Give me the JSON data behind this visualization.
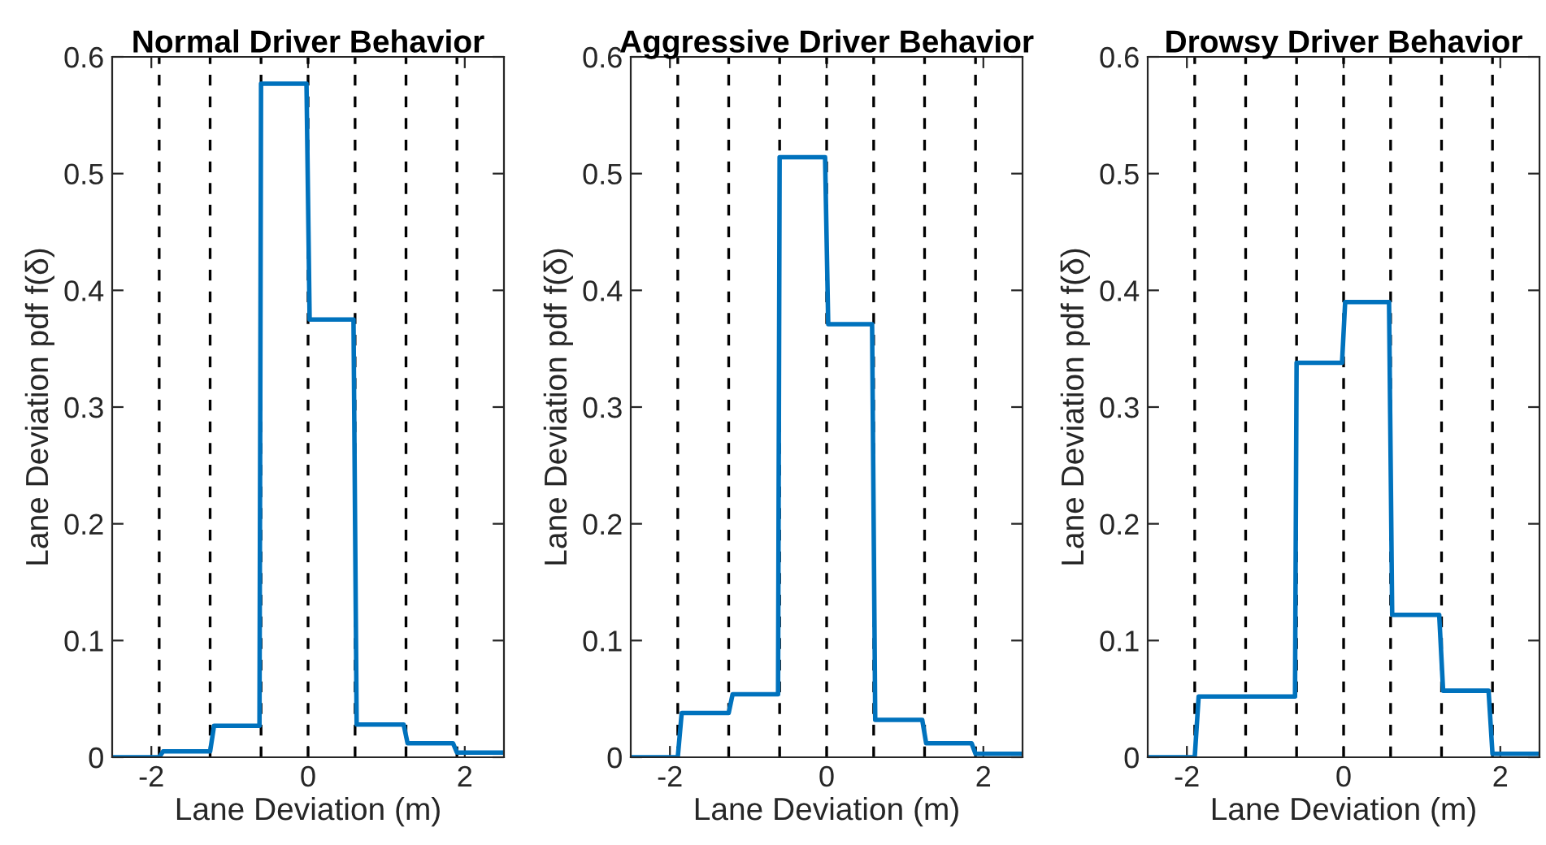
{
  "chart_data": [
    {
      "type": "line",
      "title": "Normal Driver Behavior",
      "xlabel": "Lane Deviation (m)",
      "ylabel": "Lane Deviation pdf f(δ)",
      "xlim": [
        -2.5,
        2.5
      ],
      "xticks": [
        -2,
        0,
        2
      ],
      "ylim": [
        0,
        0.6
      ],
      "yticks": [
        0,
        0.1,
        0.2,
        0.3,
        0.4,
        0.5,
        0.6
      ],
      "grid": false,
      "legend": false,
      "line_style": "solid",
      "marker": "none",
      "series": [
        {
          "color": "#0072bd",
          "x": [
            -2.5,
            -1.9,
            -1.85,
            -1.25,
            -1.2,
            -0.62,
            -0.6,
            -0.02,
            0.02,
            0.58,
            0.62,
            1.22,
            1.27,
            1.85,
            1.9,
            2.5
          ],
          "values": [
            0,
            0,
            0.005,
            0.005,
            0.027,
            0.027,
            0.577,
            0.577,
            0.375,
            0.375,
            0.028,
            0.028,
            0.012,
            0.012,
            0.004,
            0.004
          ]
        }
      ],
      "ref_lines": [
        {
          "axis": "x",
          "value": -1.9,
          "color": "#000000",
          "line_style": "dashed"
        },
        {
          "axis": "x",
          "value": -1.25,
          "color": "#000000",
          "line_style": "dashed"
        },
        {
          "axis": "x",
          "value": -0.6,
          "color": "#000000",
          "line_style": "dashed"
        },
        {
          "axis": "x",
          "value": 0,
          "color": "#000000",
          "line_style": "dashed"
        },
        {
          "axis": "x",
          "value": 0.6,
          "color": "#000000",
          "line_style": "dashed"
        },
        {
          "axis": "x",
          "value": 1.25,
          "color": "#000000",
          "line_style": "dashed"
        },
        {
          "axis": "x",
          "value": 1.9,
          "color": "#000000",
          "line_style": "dashed"
        }
      ]
    },
    {
      "type": "line",
      "title": "Aggressive Driver Behavior",
      "xlabel": "Lane Deviation (m)",
      "ylabel": "Lane Deviation pdf f(δ)",
      "xlim": [
        -2.5,
        2.5
      ],
      "xticks": [
        -2,
        0,
        2
      ],
      "ylim": [
        0,
        0.6
      ],
      "yticks": [
        0,
        0.1,
        0.2,
        0.3,
        0.4,
        0.5,
        0.6
      ],
      "grid": false,
      "legend": false,
      "line_style": "solid",
      "marker": "none",
      "series": [
        {
          "color": "#0072bd",
          "x": [
            -2.5,
            -1.9,
            -1.85,
            -1.25,
            -1.2,
            -0.62,
            -0.6,
            -0.02,
            0.02,
            0.58,
            0.62,
            1.22,
            1.27,
            1.85,
            1.9,
            2.5
          ],
          "values": [
            0,
            0,
            0.038,
            0.038,
            0.054,
            0.054,
            0.514,
            0.514,
            0.371,
            0.371,
            0.032,
            0.032,
            0.012,
            0.012,
            0.003,
            0.003
          ]
        }
      ],
      "ref_lines": [
        {
          "axis": "x",
          "value": -1.9,
          "color": "#000000",
          "line_style": "dashed"
        },
        {
          "axis": "x",
          "value": -1.25,
          "color": "#000000",
          "line_style": "dashed"
        },
        {
          "axis": "x",
          "value": -0.6,
          "color": "#000000",
          "line_style": "dashed"
        },
        {
          "axis": "x",
          "value": 0,
          "color": "#000000",
          "line_style": "dashed"
        },
        {
          "axis": "x",
          "value": 0.6,
          "color": "#000000",
          "line_style": "dashed"
        },
        {
          "axis": "x",
          "value": 1.25,
          "color": "#000000",
          "line_style": "dashed"
        },
        {
          "axis": "x",
          "value": 1.9,
          "color": "#000000",
          "line_style": "dashed"
        }
      ]
    },
    {
      "type": "line",
      "title": "Drowsy Driver Behavior",
      "xlabel": "Lane Deviation (m)",
      "ylabel": "Lane Deviation pdf f(δ)",
      "xlim": [
        -2.5,
        2.5
      ],
      "xticks": [
        -2,
        0,
        2
      ],
      "ylim": [
        0,
        0.6
      ],
      "yticks": [
        0,
        0.1,
        0.2,
        0.3,
        0.4,
        0.5,
        0.6
      ],
      "grid": false,
      "legend": false,
      "line_style": "solid",
      "marker": "none",
      "series": [
        {
          "color": "#0072bd",
          "x": [
            -2.5,
            -1.9,
            -1.85,
            -0.62,
            -0.6,
            -0.02,
            0.02,
            0.58,
            0.62,
            1.22,
            1.27,
            1.85,
            1.9,
            2.5
          ],
          "values": [
            0,
            0,
            0.052,
            0.052,
            0.338,
            0.338,
            0.39,
            0.39,
            0.122,
            0.122,
            0.057,
            0.057,
            0.003,
            0.003
          ]
        }
      ],
      "ref_lines": [
        {
          "axis": "x",
          "value": -1.9,
          "color": "#000000",
          "line_style": "dashed"
        },
        {
          "axis": "x",
          "value": -1.25,
          "color": "#000000",
          "line_style": "dashed"
        },
        {
          "axis": "x",
          "value": -0.6,
          "color": "#000000",
          "line_style": "dashed"
        },
        {
          "axis": "x",
          "value": 0,
          "color": "#000000",
          "line_style": "dashed"
        },
        {
          "axis": "x",
          "value": 0.6,
          "color": "#000000",
          "line_style": "dashed"
        },
        {
          "axis": "x",
          "value": 1.25,
          "color": "#000000",
          "line_style": "dashed"
        },
        {
          "axis": "x",
          "value": 1.9,
          "color": "#000000",
          "line_style": "dashed"
        }
      ]
    }
  ]
}
